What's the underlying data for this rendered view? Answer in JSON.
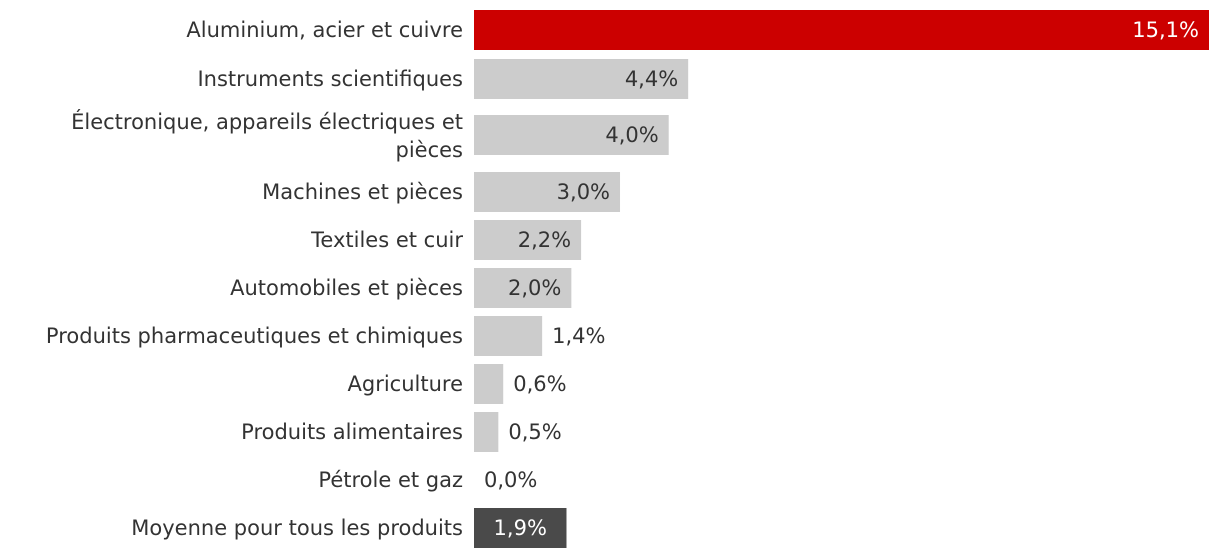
{
  "chart_data": {
    "type": "bar",
    "orientation": "horizontal",
    "categories": [
      "Aluminium, acier et cuivre",
      "Instruments scientifiques",
      "Électronique, appareils électriques et pièces",
      "Machines et pièces",
      "Textiles et cuir",
      "Automobiles et pièces",
      "Produits pharmaceutiques et chimiques",
      "Agriculture",
      "Produits alimentaires",
      "Pétrole et gaz",
      "Moyenne pour tous les produits"
    ],
    "values": [
      15.1,
      4.4,
      4.0,
      3.0,
      2.2,
      2.0,
      1.4,
      0.6,
      0.5,
      0.0,
      1.9
    ],
    "value_labels": [
      "15,1%",
      "4,4%",
      "4,0%",
      "3,0%",
      "2,2%",
      "2,0%",
      "1,4%",
      "0,6%",
      "0,5%",
      "0,0%",
      "1,9%"
    ],
    "colors": {
      "highlight": "#cc0000",
      "default": "#cccccc",
      "average": "#4a4a4a"
    },
    "highlight_index": 0,
    "average_index": 10,
    "xlim": [
      0,
      15.1
    ],
    "grid": false,
    "legend": "none",
    "title": "",
    "xlabel": "",
    "ylabel": ""
  }
}
